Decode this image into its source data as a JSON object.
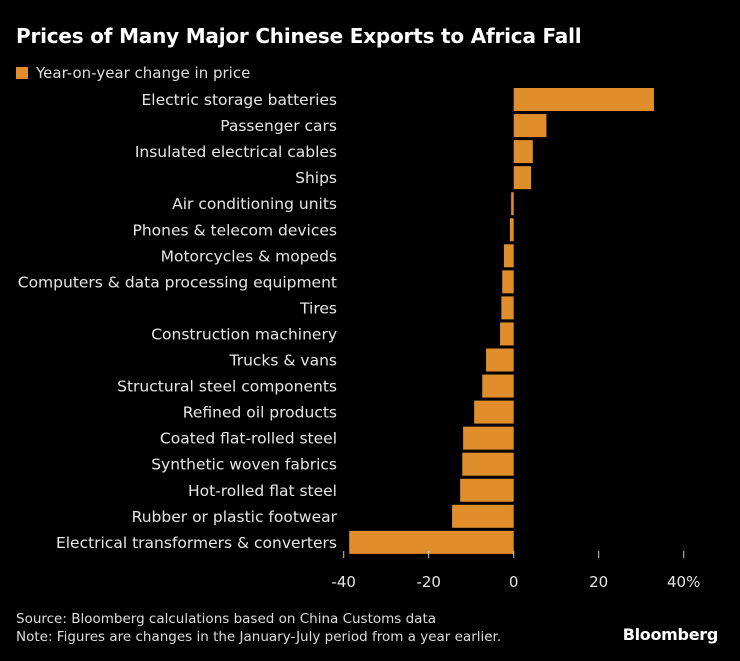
{
  "title": "Prices of Many Major Chinese Exports to Africa Fall",
  "source": "Source: Bloomberg calculations based on China Customs data",
  "note": "Note: Figures are changes in the January-July period from a year earlier.",
  "logo": "Bloomberg",
  "chart_data": {
    "type": "bar",
    "orientation": "horizontal",
    "title": "Prices of Many Major Chinese Exports to Africa Fall",
    "legend_placement": "top-left",
    "series": [
      {
        "name": "Year-on-year change in price",
        "color": "#e08e2b",
        "values": [
          33.0,
          7.7,
          4.5,
          4.1,
          -0.6,
          -0.9,
          -2.3,
          -2.7,
          -2.9,
          -3.2,
          -6.5,
          -7.4,
          -9.3,
          -11.9,
          -12.1,
          -12.6,
          -14.5,
          -38.7
        ]
      }
    ],
    "categories": [
      "Electric storage batteries",
      "Passenger cars",
      "Insulated electrical cables",
      "Ships",
      "Air conditioning units",
      "Phones & telecom devices",
      "Motorcycles & mopeds",
      "Computers & data processing equipment",
      "Tires",
      "Construction machinery",
      "Trucks & vans",
      "Structural steel components",
      "Refined oil products",
      "Coated flat-rolled steel",
      "Synthetic woven fabrics",
      "Hot-rolled flat steel",
      "Rubber or plastic footwear",
      "Electrical transformers & converters"
    ],
    "xlim": [
      -40,
      40
    ],
    "xticks": [
      -40,
      -20,
      0,
      20,
      40
    ],
    "xtick_labels": [
      "-40",
      "-20",
      "0",
      "20",
      "40%"
    ],
    "grid": false
  }
}
